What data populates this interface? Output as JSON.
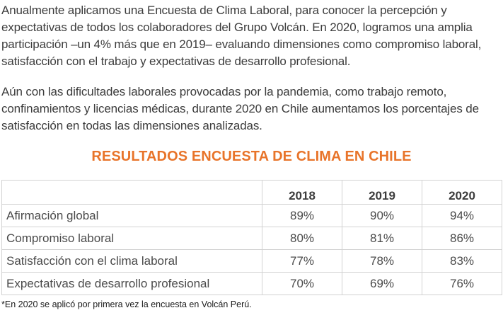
{
  "paragraphs": [
    "Anualmente aplicamos una Encuesta de Clima Laboral, para conocer la percepción y expectativas de todos los colaboradores del Grupo Volcán. En 2020, logramos una amplia participación –un 4% más que en 2019– evaluando dimensiones como compromiso laboral, satisfacción con el trabajo y expectativas de desarrollo profesional.",
    "Aún con las dificultades laborales provocadas por la pandemia, como trabajo remoto, confinamientos y licencias médicas, durante 2020 en Chile aumentamos los porcentajes de satisfacción en todas las dimensiones analizadas."
  ],
  "table": {
    "title": "RESULTADOS ENCUESTA DE CLIMA EN CHILE",
    "title_color": "#e8742a",
    "header": [
      "",
      "2018",
      "2019",
      "2020"
    ],
    "rows": [
      {
        "label": "Afirmación global",
        "values": [
          "89%",
          "90%",
          "94%"
        ]
      },
      {
        "label": "Compromiso laboral",
        "values": [
          "80%",
          "81%",
          "86%"
        ]
      },
      {
        "label": "Satisfacción con el clima laboral",
        "values": [
          "77%",
          "78%",
          "83%"
        ]
      },
      {
        "label": "Expectativas de desarrollo profesional",
        "values": [
          "70%",
          "69%",
          "76%"
        ]
      }
    ]
  },
  "footnote": "*En 2020 se aplicó por primera vez la encuesta en Volcán Perú."
}
